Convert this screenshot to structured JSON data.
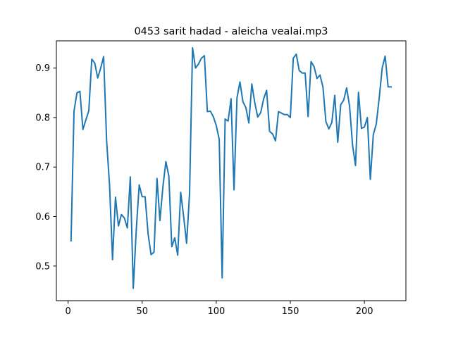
{
  "chart_data": {
    "type": "line",
    "title": "0453 sarit hadad - aleicha vealai.mp3",
    "xlabel": "",
    "ylabel": "",
    "xlim": [
      -7.9,
      228
    ],
    "ylim": [
      0.43,
      0.955
    ],
    "xticks": [
      0,
      50,
      100,
      150,
      200
    ],
    "xtick_labels": [
      "0",
      "50",
      "100",
      "150",
      "200"
    ],
    "yticks": [
      0.5,
      0.6,
      0.7,
      0.8,
      0.9
    ],
    "ytick_labels": [
      "0.5",
      "0.6",
      "0.7",
      "0.8",
      "0.9"
    ],
    "grid": false,
    "line_color": "#1f77b4",
    "series": [
      {
        "x": [
          2,
          4,
          6,
          8,
          10,
          12,
          14,
          16,
          18,
          20,
          22,
          24,
          26,
          28,
          30,
          32,
          34,
          36,
          38,
          40,
          42,
          44,
          46,
          48,
          50,
          52,
          54,
          56,
          58,
          60,
          62,
          64,
          66,
          68,
          70,
          72,
          74,
          76,
          78,
          80,
          82,
          84,
          86,
          88,
          90,
          92,
          94,
          96,
          98,
          100,
          102,
          104,
          106,
          108,
          110,
          112,
          114,
          116,
          118,
          120,
          122,
          124,
          126,
          128,
          130,
          132,
          134,
          136,
          138,
          140,
          142,
          144,
          146,
          148,
          150,
          152,
          154,
          156,
          158,
          160,
          162,
          164,
          166,
          168,
          170,
          172,
          174,
          176,
          178,
          180,
          182,
          184,
          186,
          188,
          190,
          192,
          194,
          196,
          198,
          200,
          202,
          204,
          206,
          208,
          210,
          212,
          214,
          216,
          218
        ],
        "y": [
          0.551,
          0.813,
          0.85,
          0.853,
          0.776,
          0.795,
          0.814,
          0.918,
          0.91,
          0.88,
          0.9,
          0.923,
          0.754,
          0.663,
          0.513,
          0.639,
          0.581,
          0.604,
          0.597,
          0.577,
          0.68,
          0.455,
          0.572,
          0.664,
          0.64,
          0.64,
          0.565,
          0.523,
          0.528,
          0.677,
          0.592,
          0.66,
          0.711,
          0.682,
          0.539,
          0.557,
          0.522,
          0.649,
          0.6,
          0.546,
          0.647,
          0.941,
          0.9,
          0.908,
          0.92,
          0.925,
          0.812,
          0.813,
          0.802,
          0.784,
          0.756,
          0.476,
          0.797,
          0.793,
          0.838,
          0.654,
          0.84,
          0.872,
          0.832,
          0.82,
          0.789,
          0.868,
          0.83,
          0.801,
          0.81,
          0.838,
          0.855,
          0.772,
          0.767,
          0.753,
          0.812,
          0.809,
          0.806,
          0.806,
          0.8,
          0.92,
          0.928,
          0.895,
          0.89,
          0.89,
          0.802,
          0.913,
          0.903,
          0.879,
          0.886,
          0.862,
          0.792,
          0.777,
          0.79,
          0.845,
          0.75,
          0.826,
          0.835,
          0.86,
          0.823,
          0.744,
          0.703,
          0.851,
          0.778,
          0.781,
          0.8,
          0.675,
          0.765,
          0.787,
          0.84,
          0.9,
          0.924,
          0.862,
          0.862
        ]
      }
    ]
  }
}
